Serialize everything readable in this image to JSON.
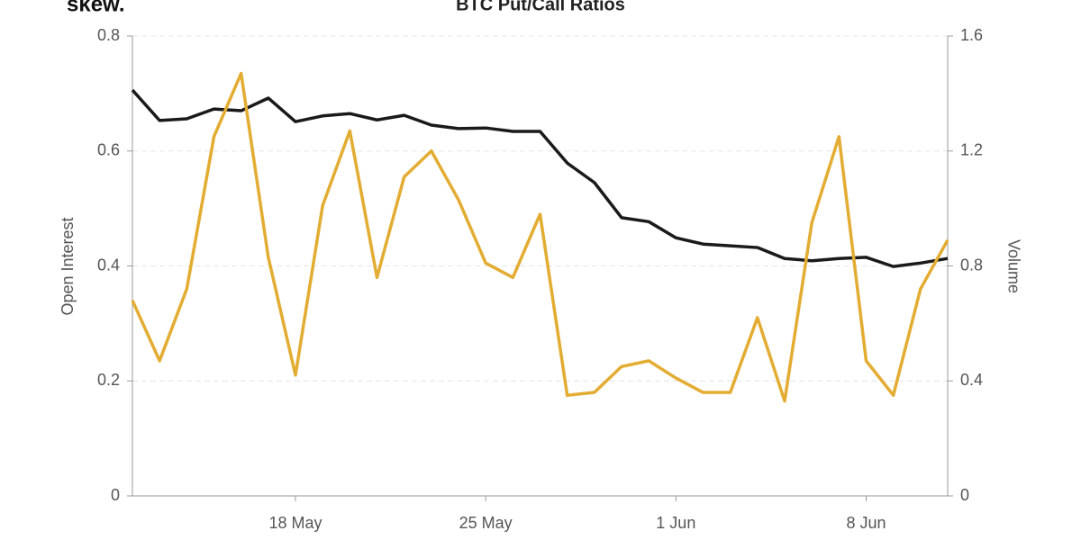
{
  "logo": "skew.",
  "chart_data": {
    "type": "line",
    "title": "BTC Put/Call Ratios",
    "y_label": "Open Interest",
    "y2_label": "Volume",
    "x": [
      "12 May",
      "13 May",
      "14 May",
      "15 May",
      "16 May",
      "17 May",
      "18 May",
      "19 May",
      "20 May",
      "21 May",
      "22 May",
      "23 May",
      "24 May",
      "25 May",
      "26 May",
      "27 May",
      "28 May",
      "29 May",
      "30 May",
      "31 May",
      "1 Jun",
      "2 Jun",
      "3 Jun",
      "4 Jun",
      "5 Jun",
      "6 Jun",
      "7 Jun",
      "8 Jun",
      "9 Jun",
      "10 Jun",
      "11 Jun"
    ],
    "xticks": [
      "18 May",
      "25 May",
      "1 Jun",
      "8 Jun"
    ],
    "ylim": [
      0,
      0.8
    ],
    "yticks": [
      0,
      0.2,
      0.4,
      0.6,
      0.8
    ],
    "y2lim": [
      0,
      1.6
    ],
    "y2ticks": [
      0,
      0.4,
      0.8,
      1.2,
      1.6
    ],
    "grid": true,
    "series": [
      {
        "color": "#1a1a1a",
        "values": [
          0.706,
          0.653,
          0.656,
          0.673,
          0.67,
          0.692,
          0.651,
          0.661,
          0.665,
          0.654,
          0.662,
          0.645,
          0.639,
          0.64,
          0.634,
          0.634,
          0.579,
          0.545,
          0.484,
          0.477,
          0.449,
          0.438,
          0.435,
          0.432,
          0.413,
          0.409,
          0.413,
          0.415,
          0.399,
          0.405,
          0.413
        ]
      },
      {
        "color": "#e3ac32",
        "axis": "y2",
        "values": [
          0.68,
          0.47,
          0.72,
          1.25,
          1.47,
          0.83,
          0.42,
          1.01,
          1.27,
          0.76,
          1.11,
          1.2,
          1.03,
          0.81,
          0.76,
          0.98,
          0.35,
          0.36,
          0.45,
          0.47,
          0.41,
          0.36,
          0.36,
          0.62,
          0.33,
          0.95,
          1.25,
          0.47,
          0.35,
          0.72,
          0.89
        ]
      }
    ]
  }
}
